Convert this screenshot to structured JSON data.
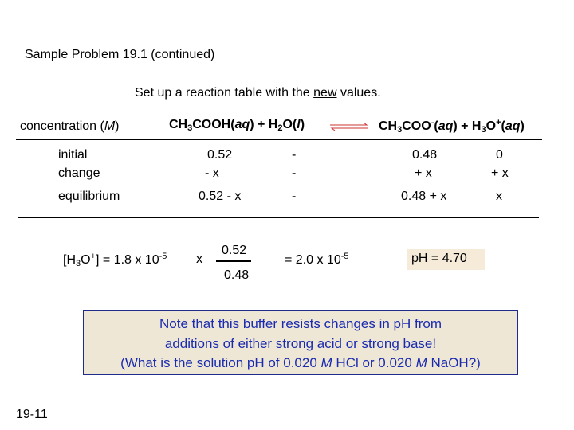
{
  "title": "Sample Problem 19.1   (continued)",
  "setup": {
    "prefix": "Set up a reaction table with the ",
    "underlined": "new",
    "suffix": " values."
  },
  "header": {
    "concentration": "concentration (",
    "concentration_unit": "M",
    "concentration_close": ")",
    "reactants": "CH3COOH(aq) + H2O(l)",
    "products": "CH3COO-(aq) + H3O+(aq)"
  },
  "rows": {
    "initial": {
      "label": "initial",
      "acid": "0.52",
      "water": "-",
      "base": "0.48",
      "h3o": "0"
    },
    "change": {
      "label": "change",
      "acid": "- x",
      "water": "-",
      "base": "+ x",
      "h3o": "+ x"
    },
    "equilibrium": {
      "label": "equilibrium",
      "acid": "0.52 - x",
      "water": "-",
      "base": "0.48 + x",
      "h3o": "x"
    }
  },
  "calc": {
    "lhs_pre": "[H",
    "lhs_sub": "3",
    "lhs_mid": "O",
    "lhs_sup": "+",
    "lhs_post": "] = 1.8 x 10",
    "lhs_exp": "-5",
    "times": "x",
    "numerator": "0.52",
    "denominator": "0.48",
    "result_pre": "= 2.0 x 10",
    "result_exp": "-5",
    "ph": "pH = 4.70"
  },
  "note": {
    "line1": "Note that this buffer resists changes in pH from",
    "line2": "additions of either strong acid or strong base!",
    "line3_a": "(What is the solution pH of 0.020 ",
    "line3_m1": "M",
    "line3_b": " HCl or 0.020 ",
    "line3_m2": "M",
    "line3_c": " NaOH?)"
  },
  "slide_number": "19-11",
  "colors": {
    "note_text": "#1a2bb0",
    "note_border": "#1e2a8c",
    "note_fill": "#efe7d6",
    "ph_fill": "#f6ead9"
  },
  "icons": [
    "equilibrium-arrows-icon"
  ]
}
